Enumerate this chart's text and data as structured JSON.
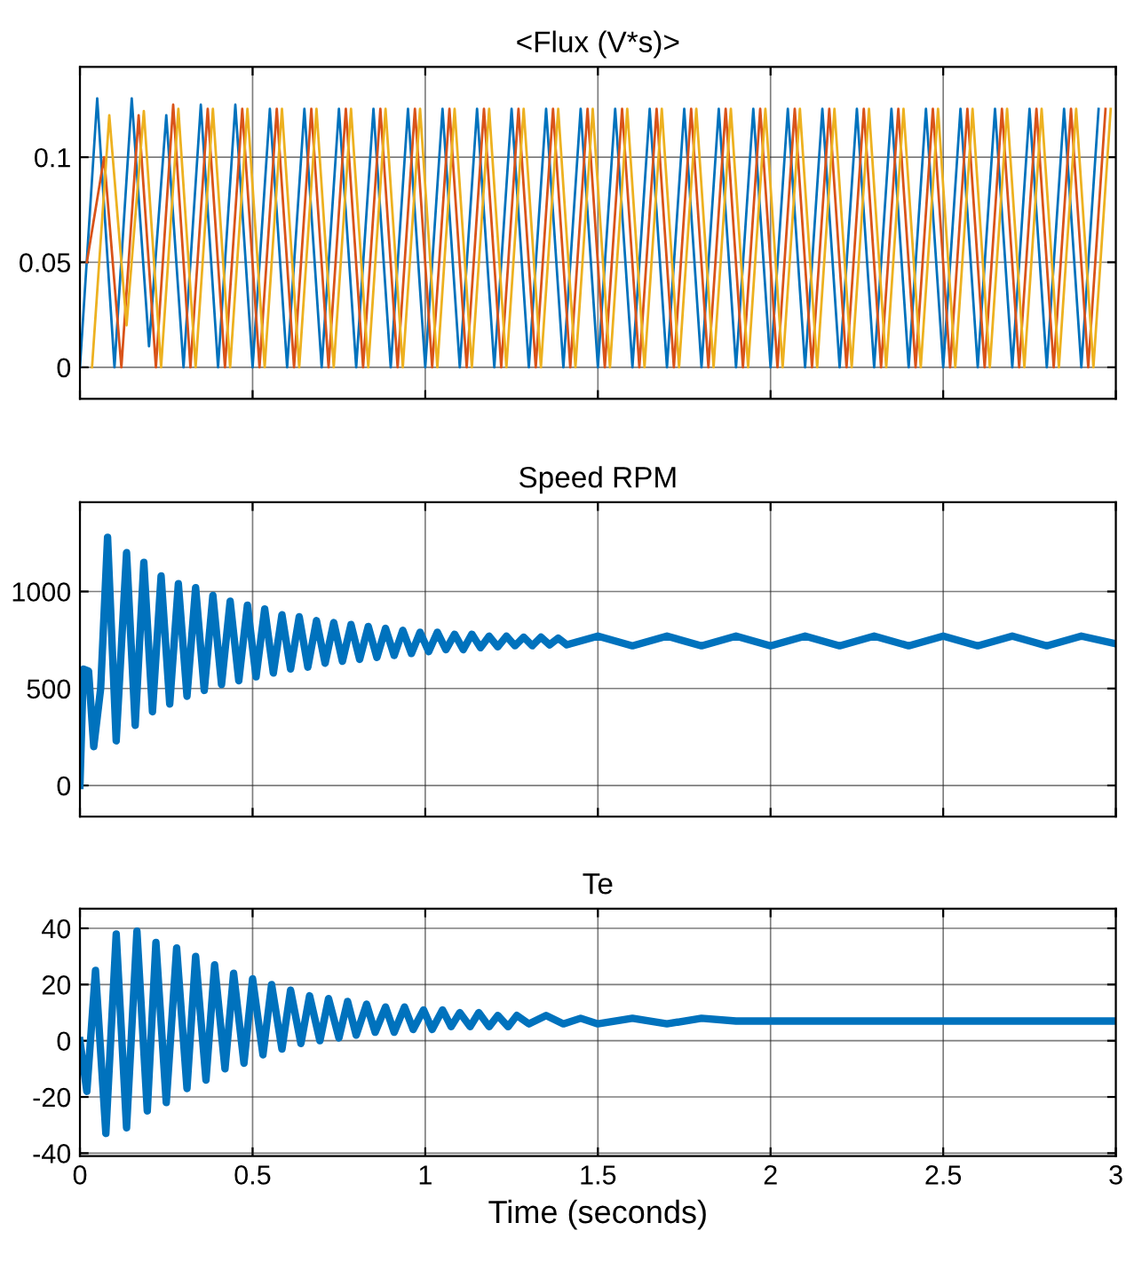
{
  "chart_data": [
    {
      "type": "line",
      "title": "<Flux (V*s)>",
      "xlim": [
        0,
        3
      ],
      "xticks": [
        0,
        0.5,
        1,
        1.5,
        2,
        2.5,
        3
      ],
      "ylim": [
        -0.015,
        0.143
      ],
      "yticks": [
        0,
        0.05,
        0.1
      ],
      "grid": true,
      "tick_labels": "y",
      "series": [
        {
          "color": "#0072bd",
          "x": [
            0,
            0.05,
            0.1,
            0.15,
            0.2,
            0.25,
            0.3,
            0.35,
            0.4,
            0.45,
            0.5,
            0.55,
            0.6,
            0.65,
            0.7,
            0.75,
            0.8,
            0.85,
            0.9,
            0.95,
            1,
            1.05,
            1.1,
            1.15,
            1.2,
            1.25,
            1.3,
            1.35,
            1.4,
            1.45,
            1.5,
            1.55,
            1.6,
            1.65,
            1.7,
            1.75,
            1.8,
            1.85,
            1.9,
            1.95,
            2,
            2.05,
            2.1,
            2.15,
            2.2,
            2.25,
            2.3,
            2.35,
            2.4,
            2.45,
            2.5,
            2.55,
            2.6,
            2.65,
            2.7,
            2.75,
            2.8,
            2.85,
            2.9,
            2.95
          ],
          "values": [
            0,
            0.128,
            0,
            0.128,
            0.01,
            0.12,
            0,
            0.125,
            0,
            0.125,
            0,
            0.123,
            0,
            0.123,
            0,
            0.123,
            0,
            0.123,
            0,
            0.123,
            0,
            0.123,
            0,
            0.123,
            0,
            0.123,
            0,
            0.123,
            0,
            0.123,
            0,
            0.123,
            0,
            0.123,
            0,
            0.123,
            0,
            0.123,
            0,
            0.123,
            0,
            0.123,
            0,
            0.123,
            0,
            0.123,
            0,
            0.123,
            0,
            0.123,
            0,
            0.123,
            0,
            0.123,
            0,
            0.123,
            0,
            0.123,
            0,
            0.123
          ]
        },
        {
          "color": "#d95319",
          "x": [
            0.02,
            0.07,
            0.12,
            0.17,
            0.22,
            0.27,
            0.32,
            0.37,
            0.42,
            0.47,
            0.52,
            0.57,
            0.62,
            0.67,
            0.72,
            0.77,
            0.82,
            0.87,
            0.92,
            0.97,
            1.02,
            1.07,
            1.12,
            1.17,
            1.22,
            1.27,
            1.32,
            1.37,
            1.42,
            1.47,
            1.52,
            1.57,
            1.62,
            1.67,
            1.72,
            1.77,
            1.82,
            1.87,
            1.92,
            1.97,
            2.02,
            2.07,
            2.12,
            2.17,
            2.22,
            2.27,
            2.32,
            2.37,
            2.42,
            2.47,
            2.52,
            2.57,
            2.62,
            2.67,
            2.72,
            2.77,
            2.82,
            2.87,
            2.92,
            2.97
          ],
          "values": [
            0.05,
            0.1,
            0,
            0.12,
            0,
            0.125,
            0,
            0.123,
            0,
            0.123,
            0,
            0.123,
            0,
            0.123,
            0,
            0.123,
            0,
            0.123,
            0,
            0.123,
            0,
            0.123,
            0,
            0.123,
            0,
            0.123,
            0,
            0.123,
            0,
            0.123,
            0,
            0.123,
            0,
            0.123,
            0,
            0.123,
            0,
            0.123,
            0,
            0.123,
            0,
            0.123,
            0,
            0.123,
            0,
            0.123,
            0,
            0.123,
            0,
            0.123,
            0,
            0.123,
            0,
            0.123,
            0,
            0.123,
            0,
            0.123,
            0,
            0.123
          ]
        },
        {
          "color": "#edb120",
          "x": [
            0.035,
            0.085,
            0.135,
            0.185,
            0.235,
            0.285,
            0.335,
            0.385,
            0.435,
            0.485,
            0.535,
            0.585,
            0.635,
            0.685,
            0.735,
            0.785,
            0.835,
            0.885,
            0.935,
            0.985,
            1.035,
            1.085,
            1.135,
            1.185,
            1.235,
            1.285,
            1.335,
            1.385,
            1.435,
            1.485,
            1.535,
            1.585,
            1.635,
            1.685,
            1.735,
            1.785,
            1.835,
            1.885,
            1.935,
            1.985,
            2.035,
            2.085,
            2.135,
            2.185,
            2.235,
            2.285,
            2.335,
            2.385,
            2.435,
            2.485,
            2.535,
            2.585,
            2.635,
            2.685,
            2.735,
            2.785,
            2.835,
            2.885,
            2.935,
            2.985
          ],
          "values": [
            0,
            0.12,
            0.02,
            0.122,
            0,
            0.123,
            0,
            0.123,
            0,
            0.123,
            0,
            0.123,
            0,
            0.123,
            0,
            0.123,
            0,
            0.123,
            0,
            0.123,
            0,
            0.123,
            0,
            0.123,
            0,
            0.123,
            0,
            0.123,
            0,
            0.123,
            0,
            0.123,
            0,
            0.123,
            0,
            0.123,
            0,
            0.123,
            0,
            0.123,
            0,
            0.123,
            0,
            0.123,
            0,
            0.123,
            0,
            0.123,
            0,
            0.123,
            0,
            0.123,
            0,
            0.123,
            0,
            0.123,
            0,
            0.123,
            0,
            0.123
          ]
        }
      ]
    },
    {
      "type": "line",
      "title": "Speed RPM",
      "xlim": [
        0,
        3
      ],
      "xticks": [
        0,
        0.5,
        1,
        1.5,
        2,
        2.5,
        3
      ],
      "ylim": [
        -160,
        1460
      ],
      "yticks": [
        0,
        500,
        1000
      ],
      "grid": true,
      "tick_labels": "y",
      "series": [
        {
          "color": "#0072bd",
          "x": [
            0,
            0.01,
            0.025,
            0.04,
            0.06,
            0.08,
            0.105,
            0.135,
            0.16,
            0.185,
            0.21,
            0.235,
            0.26,
            0.285,
            0.31,
            0.335,
            0.36,
            0.385,
            0.41,
            0.435,
            0.46,
            0.485,
            0.51,
            0.535,
            0.56,
            0.585,
            0.61,
            0.635,
            0.66,
            0.685,
            0.71,
            0.735,
            0.76,
            0.785,
            0.81,
            0.835,
            0.86,
            0.885,
            0.91,
            0.935,
            0.96,
            0.985,
            1.01,
            1.035,
            1.06,
            1.085,
            1.11,
            1.135,
            1.16,
            1.185,
            1.21,
            1.235,
            1.26,
            1.285,
            1.31,
            1.335,
            1.36,
            1.385,
            1.41,
            1.5,
            1.6,
            1.7,
            1.8,
            1.9,
            2,
            2.1,
            2.2,
            2.3,
            2.4,
            2.5,
            2.6,
            2.7,
            2.8,
            2.9,
            3
          ],
          "values": [
            0,
            600,
            590,
            200,
            500,
            1280,
            230,
            1200,
            310,
            1150,
            380,
            1080,
            420,
            1040,
            460,
            1020,
            490,
            980,
            520,
            950,
            540,
            930,
            560,
            910,
            580,
            880,
            600,
            870,
            610,
            850,
            630,
            840,
            640,
            830,
            650,
            820,
            660,
            810,
            670,
            800,
            680,
            790,
            690,
            790,
            700,
            780,
            700,
            780,
            710,
            770,
            715,
            770,
            720,
            765,
            720,
            765,
            725,
            760,
            725,
            770,
            720,
            770,
            720,
            770,
            720,
            770,
            720,
            770,
            720,
            770,
            720,
            770,
            720,
            770,
            730
          ]
        }
      ]
    },
    {
      "type": "line",
      "title": "Te",
      "xlabel": "Time (seconds)",
      "xlim": [
        0,
        3
      ],
      "xticks": [
        0,
        0.5,
        1,
        1.5,
        2,
        2.5,
        3
      ],
      "ylim": [
        -41,
        47
      ],
      "yticks": [
        -40,
        -20,
        0,
        20,
        40
      ],
      "grid": true,
      "series": [
        {
          "color": "#0072bd",
          "x": [
            0,
            0.02,
            0.045,
            0.075,
            0.105,
            0.135,
            0.165,
            0.195,
            0.22,
            0.25,
            0.28,
            0.31,
            0.335,
            0.365,
            0.39,
            0.42,
            0.445,
            0.475,
            0.5,
            0.53,
            0.555,
            0.585,
            0.61,
            0.64,
            0.665,
            0.695,
            0.72,
            0.75,
            0.775,
            0.8,
            0.83,
            0.855,
            0.885,
            0.91,
            0.94,
            0.965,
            0.995,
            1.02,
            1.05,
            1.075,
            1.1,
            1.13,
            1.155,
            1.185,
            1.21,
            1.24,
            1.265,
            1.3,
            1.35,
            1.4,
            1.45,
            1.5,
            1.6,
            1.7,
            1.8,
            1.9,
            2.15,
            3
          ],
          "values": [
            0,
            -18,
            25,
            -33,
            38,
            -31,
            39,
            -25,
            35,
            -22,
            33,
            -17,
            30,
            -14,
            27,
            -10,
            24,
            -8,
            22,
            -5,
            20,
            -3,
            18,
            -1,
            16,
            0,
            15,
            1,
            14,
            2,
            13,
            3,
            12,
            3,
            12,
            4,
            11,
            4,
            11,
            5,
            10,
            5,
            10,
            5,
            9,
            5,
            9,
            6,
            9,
            6,
            8,
            6,
            8,
            6,
            8,
            7,
            7,
            7
          ]
        }
      ]
    }
  ]
}
